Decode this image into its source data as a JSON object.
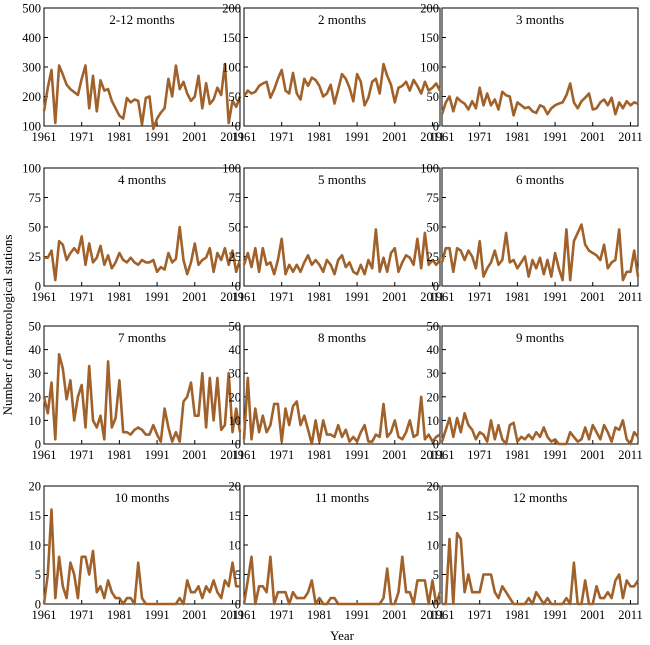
{
  "figure": {
    "ylabel": "Number of meteorological stations",
    "xlabel": "Year",
    "line_color": "#A0622A"
  },
  "chart_data": [
    {
      "type": "line",
      "title": "2-12 months",
      "ylim": [
        100,
        500
      ],
      "yticks": [
        100,
        200,
        300,
        400,
        500
      ],
      "xticks": [
        1961,
        1971,
        1981,
        1991,
        2001,
        2011
      ],
      "x_start": 1961,
      "values": [
        150,
        230,
        290,
        110,
        305,
        275,
        240,
        225,
        215,
        205,
        260,
        305,
        160,
        270,
        150,
        255,
        220,
        225,
        185,
        160,
        135,
        125,
        195,
        180,
        190,
        185,
        105,
        195,
        200,
        90,
        125,
        145,
        160,
        260,
        200,
        305,
        225,
        250,
        210,
        185,
        200,
        270,
        160,
        245,
        175,
        190,
        230,
        205,
        310,
        110,
        185,
        165,
        200
      ]
    },
    {
      "type": "line",
      "title": "2 months",
      "ylim": [
        0,
        200
      ],
      "yticks": [
        0,
        50,
        100,
        150,
        200
      ],
      "xticks": [
        1961,
        1971,
        1981,
        1991,
        2001,
        2011
      ],
      "x_start": 1961,
      "values": [
        50,
        60,
        55,
        58,
        68,
        72,
        75,
        48,
        62,
        80,
        95,
        60,
        55,
        90,
        55,
        45,
        80,
        68,
        82,
        78,
        68,
        50,
        55,
        70,
        38,
        62,
        88,
        80,
        65,
        42,
        88,
        75,
        35,
        48,
        75,
        80,
        55,
        105,
        85,
        70,
        40,
        65,
        68,
        75,
        60,
        78,
        68,
        55,
        75,
        60,
        65,
        72,
        60
      ]
    },
    {
      "type": "line",
      "title": "3 months",
      "ylim": [
        0,
        200
      ],
      "yticks": [
        0,
        50,
        100,
        150,
        200
      ],
      "xticks": [
        1961,
        1971,
        1981,
        1991,
        2001,
        2011
      ],
      "x_start": 1961,
      "values": [
        20,
        40,
        50,
        25,
        48,
        42,
        38,
        28,
        42,
        30,
        65,
        35,
        55,
        35,
        45,
        28,
        58,
        52,
        50,
        18,
        40,
        35,
        30,
        32,
        25,
        22,
        35,
        32,
        20,
        30,
        35,
        38,
        40,
        52,
        72,
        40,
        30,
        42,
        48,
        55,
        28,
        30,
        40,
        45,
        35,
        48,
        20,
        40,
        30,
        42,
        35,
        40,
        38
      ]
    },
    {
      "type": "line",
      "title": "4 months",
      "ylim": [
        0,
        100
      ],
      "yticks": [
        0,
        25,
        50,
        75,
        100
      ],
      "xticks": [
        1961,
        1971,
        1981,
        1991,
        2001,
        2011
      ],
      "x_start": 1961,
      "values": [
        24,
        24,
        30,
        5,
        38,
        35,
        22,
        28,
        32,
        28,
        42,
        18,
        36,
        20,
        24,
        34,
        18,
        26,
        15,
        20,
        28,
        22,
        20,
        24,
        20,
        18,
        22,
        20,
        20,
        22,
        12,
        16,
        14,
        28,
        20,
        23,
        50,
        22,
        10,
        20,
        36,
        18,
        22,
        24,
        32,
        12,
        28,
        22,
        32,
        18,
        30,
        12,
        22
      ]
    },
    {
      "type": "line",
      "title": "5 months",
      "ylim": [
        0,
        100
      ],
      "yticks": [
        0,
        25,
        50,
        75,
        100
      ],
      "xticks": [
        1961,
        1971,
        1981,
        1991,
        2001,
        2011
      ],
      "x_start": 1961,
      "values": [
        18,
        28,
        16,
        32,
        12,
        32,
        18,
        20,
        10,
        22,
        40,
        10,
        18,
        12,
        18,
        12,
        20,
        26,
        18,
        22,
        18,
        12,
        22,
        18,
        10,
        22,
        26,
        16,
        20,
        12,
        10,
        18,
        10,
        22,
        15,
        48,
        12,
        24,
        12,
        28,
        32,
        12,
        20,
        26,
        24,
        18,
        40,
        15,
        45,
        18,
        22,
        18,
        22
      ]
    },
    {
      "type": "line",
      "title": "6 months",
      "ylim": [
        0,
        100
      ],
      "yticks": [
        0,
        25,
        50,
        75,
        100
      ],
      "xticks": [
        1961,
        1971,
        1981,
        1991,
        2001,
        2011
      ],
      "x_start": 1961,
      "values": [
        20,
        32,
        32,
        12,
        32,
        30,
        22,
        30,
        25,
        15,
        38,
        8,
        15,
        20,
        30,
        18,
        22,
        45,
        20,
        22,
        15,
        20,
        25,
        8,
        22,
        15,
        24,
        10,
        22,
        8,
        28,
        15,
        5,
        48,
        5,
        38,
        45,
        52,
        35,
        30,
        28,
        26,
        22,
        35,
        15,
        20,
        22,
        48,
        5,
        12,
        12,
        30,
        8
      ]
    },
    {
      "type": "line",
      "title": "7 months",
      "ylim": [
        0,
        50
      ],
      "yticks": [
        0,
        10,
        20,
        30,
        40,
        50
      ],
      "xticks": [
        1961,
        1971,
        1981,
        1991,
        2001,
        2011
      ],
      "x_start": 1961,
      "values": [
        20,
        13,
        26,
        2,
        38,
        32,
        19,
        27,
        10,
        20,
        25,
        7,
        33,
        10,
        7,
        12,
        2,
        35,
        7,
        11,
        27,
        5,
        5,
        4,
        6,
        7,
        6,
        4,
        4,
        8,
        4,
        1,
        15,
        7,
        1,
        5,
        1,
        18,
        20,
        26,
        12,
        12,
        30,
        7,
        28,
        10,
        28,
        6,
        8,
        30,
        5,
        15,
        5
      ]
    },
    {
      "type": "line",
      "title": "8 months",
      "ylim": [
        0,
        50
      ],
      "yticks": [
        0,
        10,
        20,
        30,
        40,
        50
      ],
      "xticks": [
        1961,
        1971,
        1981,
        1991,
        2001,
        2011
      ],
      "x_start": 1961,
      "values": [
        2,
        28,
        2,
        15,
        5,
        12,
        5,
        8,
        17,
        17,
        1,
        15,
        8,
        16,
        18,
        8,
        12,
        6,
        0,
        10,
        1,
        10,
        4,
        4,
        3,
        8,
        3,
        6,
        1,
        3,
        1,
        5,
        8,
        1,
        1,
        4,
        3,
        17,
        3,
        5,
        10,
        3,
        2,
        5,
        10,
        3,
        4,
        20,
        2,
        4,
        1,
        3,
        4
      ]
    },
    {
      "type": "line",
      "title": "9 months",
      "ylim": [
        0,
        50
      ],
      "yticks": [
        0,
        10,
        20,
        30,
        40,
        50
      ],
      "xticks": [
        1961,
        1971,
        1981,
        1991,
        2001,
        2011
      ],
      "x_start": 1961,
      "values": [
        1,
        6,
        11,
        3,
        11,
        5,
        13,
        8,
        6,
        2,
        5,
        4,
        1,
        10,
        2,
        8,
        2,
        0,
        8,
        9,
        1,
        3,
        2,
        4,
        2,
        5,
        3,
        7,
        3,
        1,
        2,
        0,
        0,
        0,
        5,
        3,
        1,
        2,
        7,
        2,
        8,
        5,
        2,
        8,
        5,
        1,
        7,
        6,
        10,
        2,
        0,
        5,
        3
      ]
    },
    {
      "type": "line",
      "title": "10 months",
      "ylim": [
        0,
        20
      ],
      "yticks": [
        0,
        5,
        10,
        15,
        20
      ],
      "xticks": [
        1961,
        1971,
        1981,
        1991,
        2001,
        2011
      ],
      "x_start": 1961,
      "values": [
        0,
        5,
        16,
        1,
        8,
        3,
        1,
        7,
        5,
        1,
        8,
        8,
        5,
        9,
        2,
        3,
        1,
        4,
        2,
        1,
        1,
        0,
        1,
        1,
        0,
        7,
        1,
        0,
        0,
        0,
        0,
        0,
        0,
        0,
        0,
        0,
        1,
        0,
        4,
        2,
        2,
        3,
        1,
        3,
        2,
        4,
        2,
        1,
        4,
        3,
        7,
        3,
        3
      ]
    },
    {
      "type": "line",
      "title": "11 months",
      "ylim": [
        0,
        20
      ],
      "yticks": [
        0,
        5,
        10,
        15,
        20
      ],
      "xticks": [
        1961,
        1971,
        1981,
        1991,
        2001,
        2011
      ],
      "x_start": 1961,
      "values": [
        0,
        4,
        8,
        0,
        3,
        3,
        2,
        8,
        0,
        2,
        2,
        2,
        0,
        2,
        1,
        1,
        1,
        2,
        4,
        0,
        1,
        0,
        0,
        1,
        1,
        0,
        0,
        0,
        0,
        0,
        0,
        0,
        0,
        0,
        0,
        0,
        0,
        1,
        6,
        0,
        0,
        2,
        8,
        2,
        2,
        0,
        4,
        4,
        4,
        0,
        4,
        0,
        2
      ]
    },
    {
      "type": "line",
      "title": "12 months",
      "ylim": [
        0,
        20
      ],
      "yticks": [
        0,
        5,
        10,
        15,
        20
      ],
      "xticks": [
        1961,
        1971,
        1981,
        1991,
        2001,
        2011
      ],
      "x_start": 1961,
      "values": [
        0,
        0,
        11,
        0,
        12,
        11,
        2,
        5,
        2,
        2,
        2,
        5,
        5,
        5,
        2,
        1,
        3,
        2,
        1,
        0,
        0,
        0,
        0,
        1,
        0,
        2,
        1,
        0,
        1,
        0,
        0,
        0,
        0,
        1,
        0,
        7,
        0,
        0,
        4,
        0,
        0,
        3,
        1,
        1,
        2,
        1,
        4,
        5,
        1,
        4,
        3,
        3,
        4
      ]
    }
  ]
}
